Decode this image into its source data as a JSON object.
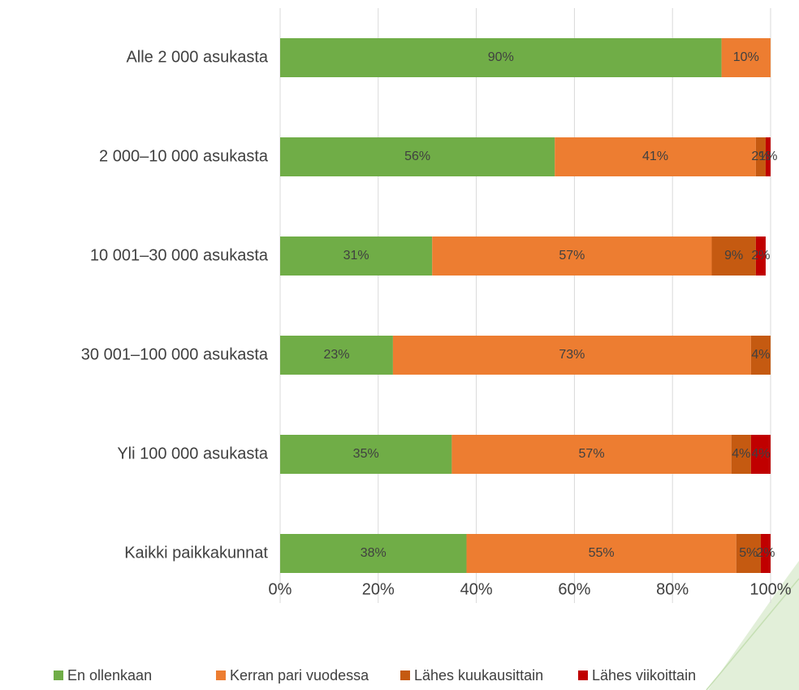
{
  "chart_data": {
    "type": "stacked_barh",
    "categories": [
      "Alle 2 000 asukasta",
      "2 000–10 000 asukasta",
      "10 001–30 000 asukasta",
      "30 001–100 000 asukasta",
      "Yli 100 000 asukasta",
      "Kaikki paikkakunnat"
    ],
    "series": [
      {
        "name": "En ollenkaan",
        "color": "#70ad47",
        "values": [
          90,
          56,
          31,
          23,
          35,
          38
        ],
        "value_labels": [
          "90%",
          "56%",
          "31%",
          "23%",
          "35%",
          "38%"
        ]
      },
      {
        "name": "Kerran pari vuodessa",
        "color": "#ed7d31",
        "values": [
          10,
          41,
          57,
          73,
          57,
          55
        ],
        "value_labels": [
          "10%",
          "41%",
          "57%",
          "73%",
          "57%",
          "55%"
        ]
      },
      {
        "name": "Lähes kuukausittain",
        "color": "#c55a11",
        "values": [
          null,
          2,
          9,
          4,
          4,
          5
        ],
        "value_labels": [
          null,
          "2%",
          "9%",
          "4%",
          "4%",
          "5%"
        ]
      },
      {
        "name": "Lähes viikoittain",
        "color": "#c00000",
        "values": [
          null,
          1,
          2,
          null,
          4,
          2
        ],
        "value_labels": [
          null,
          "1%",
          "2%",
          null,
          "4%",
          "2%"
        ]
      }
    ],
    "xlim": [
      0,
      100
    ],
    "xticks": [
      {
        "value": 0,
        "label": "0%"
      },
      {
        "value": 20,
        "label": "20%"
      },
      {
        "value": 40,
        "label": "40%"
      },
      {
        "value": 60,
        "label": "60%"
      },
      {
        "value": 80,
        "label": "80%"
      },
      {
        "value": 100,
        "label": "100%"
      }
    ],
    "grid": true,
    "legend": "bottom"
  }
}
